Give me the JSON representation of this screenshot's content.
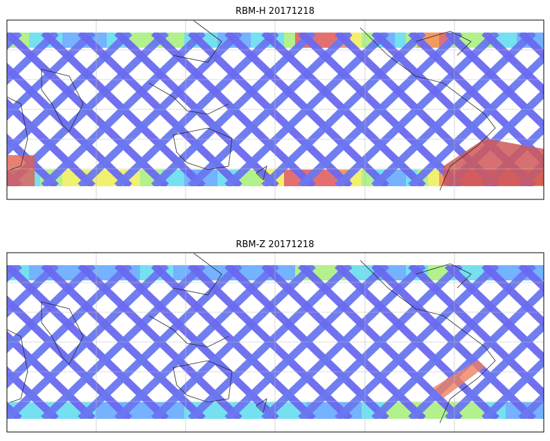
{
  "panels": [
    {
      "title": "RBM-H 20171218"
    },
    {
      "title": "RBM-Z 20171218"
    }
  ]
}
